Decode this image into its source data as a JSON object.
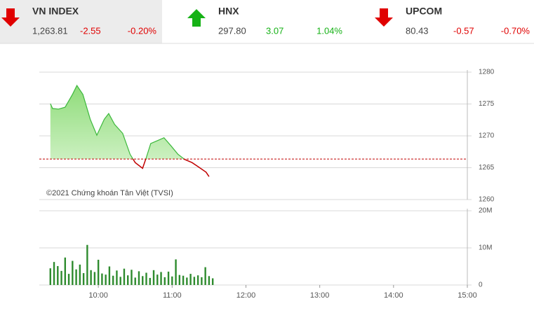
{
  "indices": [
    {
      "name": "VN INDEX",
      "direction": "down",
      "value": "1,263.81",
      "change": "-2.55",
      "percent": "-0.20%"
    },
    {
      "name": "HNX",
      "direction": "up",
      "value": "297.80",
      "change": "3.07",
      "percent": "1.04%"
    },
    {
      "name": "UPCOM",
      "direction": "down",
      "value": "80.43",
      "change": "-0.57",
      "percent": "-0.70%"
    }
  ],
  "chart_data": [
    {
      "type": "area",
      "watermark": "©2021 Chứng khoán Tân Việt (TVSI)",
      "reference": 1266.36,
      "up_color": "#3cb83c",
      "down_color": "#c00000",
      "x": [
        9.35,
        9.38,
        9.46,
        9.55,
        9.65,
        9.71,
        9.79,
        9.89,
        9.98,
        10.08,
        10.14,
        10.22,
        10.33,
        10.43,
        10.5,
        10.6,
        10.65,
        10.71,
        10.81,
        10.89,
        10.98,
        11.08,
        11.17,
        11.27,
        11.36,
        11.46,
        11.5
      ],
      "y": [
        1275.05,
        1274.3,
        1274.2,
        1274.5,
        1276.5,
        1277.9,
        1276.5,
        1272.6,
        1270.1,
        1272.6,
        1273.5,
        1271.8,
        1270.4,
        1267.1,
        1265.8,
        1264.9,
        1266.6,
        1268.8,
        1269.3,
        1269.7,
        1268.5,
        1267.1,
        1266.3,
        1265.8,
        1265.1,
        1264.3,
        1263.6
      ],
      "xlim": [
        9.2,
        15
      ],
      "ylim": [
        1260,
        1280
      ],
      "yticks": [
        1260,
        1265,
        1270,
        1275,
        1280
      ],
      "grid": true
    },
    {
      "type": "bar",
      "color": "#2e8b2e",
      "x": [
        9.35,
        9.4,
        9.45,
        9.5,
        9.55,
        9.6,
        9.65,
        9.7,
        9.75,
        9.8,
        9.85,
        9.9,
        9.95,
        10.0,
        10.05,
        10.1,
        10.15,
        10.2,
        10.25,
        10.3,
        10.35,
        10.4,
        10.45,
        10.5,
        10.55,
        10.6,
        10.65,
        10.7,
        10.75,
        10.8,
        10.85,
        10.9,
        10.95,
        11.0,
        11.05,
        11.1,
        11.15,
        11.2,
        11.25,
        11.3,
        11.35,
        11.4,
        11.45,
        11.5,
        11.55
      ],
      "values": [
        4.5,
        6.2,
        5.1,
        3.8,
        7.4,
        3.0,
        6.5,
        4.2,
        5.5,
        3.2,
        10.8,
        4.0,
        3.5,
        6.8,
        3.1,
        2.8,
        5.0,
        2.5,
        3.9,
        2.2,
        4.4,
        2.6,
        4.1,
        2.0,
        3.7,
        2.4,
        3.3,
        1.9,
        4.0,
        2.8,
        3.5,
        2.1,
        3.6,
        2.3,
        6.9,
        2.7,
        2.5,
        2.0,
        3.0,
        2.2,
        2.6,
        2.1,
        4.8,
        2.4,
        1.8
      ],
      "xlim": [
        9.2,
        15
      ],
      "ylim": [
        0,
        20
      ],
      "yticks": [
        0,
        {
          "value": 10,
          "label": "10M"
        },
        {
          "value": 20,
          "label": "20M"
        }
      ],
      "xticks": [
        {
          "value": 10,
          "label": "10:00"
        },
        {
          "value": 11,
          "label": "11:00"
        },
        {
          "value": 12,
          "label": "12:00"
        },
        {
          "value": 13,
          "label": "13:00"
        },
        {
          "value": 14,
          "label": "14:00"
        },
        {
          "value": 15,
          "label": "15:00"
        }
      ],
      "grid": true
    }
  ]
}
